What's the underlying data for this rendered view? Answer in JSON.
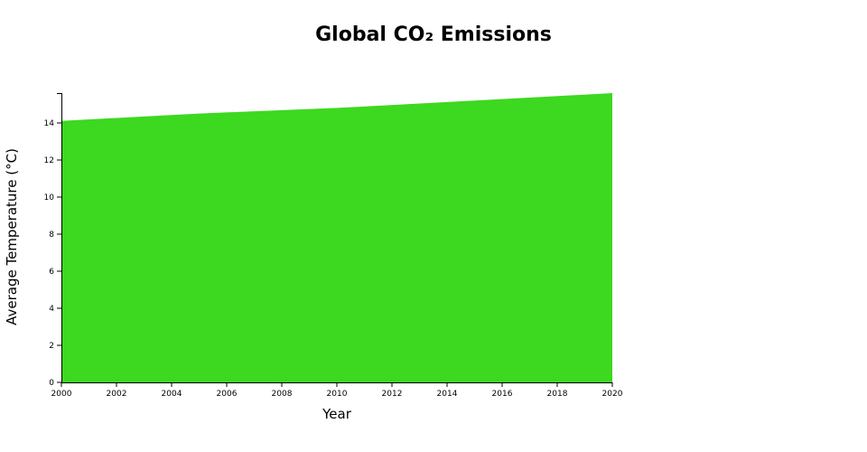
{
  "colors": {
    "area_fill": "#3dd820",
    "axis": "#000000",
    "background": "#ffffff"
  },
  "chart_data": {
    "type": "area",
    "title": "Global CO₂ Emissions",
    "xlabel": "Year",
    "ylabel": "Average Temperature (°C)",
    "x": [
      2000,
      2005,
      2010,
      2015,
      2020
    ],
    "series": [
      {
        "values": [
          14.1,
          14.5,
          14.8,
          15.2,
          15.6
        ]
      }
    ],
    "xlim": [
      2000,
      2020
    ],
    "ylim": [
      0,
      15.6
    ],
    "x_ticks": [
      "2000",
      "2002",
      "2004",
      "2006",
      "2008",
      "2010",
      "2012",
      "2014",
      "2016",
      "2018",
      "2020"
    ],
    "y_ticks": [
      "0",
      "2",
      "4",
      "6",
      "8",
      "10",
      "12",
      "14"
    ],
    "grid": false,
    "legend": "none"
  }
}
